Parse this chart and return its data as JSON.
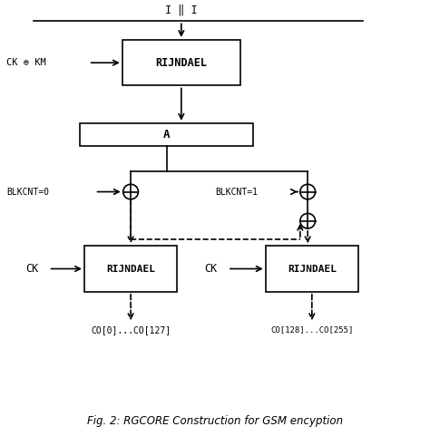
{
  "title": "Fig. 2: RGCORE Construction for GSM encyption",
  "bg_color": "#ffffff",
  "line_color": "#000000",
  "top_label": "I ‖ I",
  "top_rijndael_label": "RIJNDAEL",
  "top_rijndael_input": "CK ⊕ KM",
  "a_box_label": "A",
  "blkcnt0_label": "BLKCNT=0",
  "blkcnt1_label": "BLKCNT=1",
  "left_rijndael_label": "RIJNDAEL",
  "right_rijndael_label": "RIJNDAEL",
  "ck_left": "CK",
  "ck_right": "CK",
  "co_left": "CO[0]...CO[127]",
  "co_right": "CO[128]...CO[255]"
}
